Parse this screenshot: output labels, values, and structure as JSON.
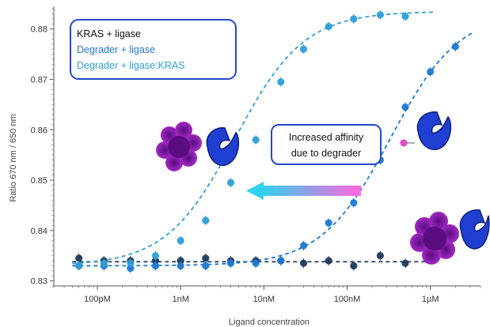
{
  "chart_data": {
    "type": "scatter",
    "xlabel": "Ligand concentration",
    "ylabel": "Ratio 670 nm / 650 nm",
    "x_scale": "log",
    "xlim": [
      3e-11,
      4e-06
    ],
    "ylim": [
      0.829,
      0.8845
    ],
    "x_ticks": [
      {
        "value": 1e-10,
        "label": "100pM"
      },
      {
        "value": 1e-09,
        "label": "1nM"
      },
      {
        "value": 1e-08,
        "label": "10nM"
      },
      {
        "value": 1e-07,
        "label": "100nM"
      },
      {
        "value": 1e-06,
        "label": "1µM"
      }
    ],
    "y_ticks": [
      {
        "value": 0.83,
        "label": "0.83"
      },
      {
        "value": 0.84,
        "label": "0.84"
      },
      {
        "value": 0.85,
        "label": "0.85"
      },
      {
        "value": 0.86,
        "label": "0.86"
      },
      {
        "value": 0.87,
        "label": "0.87"
      },
      {
        "value": 0.88,
        "label": "0.88"
      }
    ],
    "legend_position": "top-left",
    "grid": false,
    "series": [
      {
        "name": "KRAS + ligase",
        "color": "#1d3a5c",
        "x": [
          6e-11,
          1.2e-10,
          2.5e-10,
          5e-10,
          1e-09,
          2e-09,
          4e-09,
          8e-09,
          1.6e-08,
          3e-08,
          6e-08,
          1.2e-07,
          2.5e-07,
          5e-07
        ],
        "y": [
          0.8345,
          0.834,
          0.834,
          0.834,
          0.834,
          0.8345,
          0.834,
          0.834,
          0.834,
          0.8335,
          0.834,
          0.833,
          0.835,
          0.8335
        ]
      },
      {
        "name": "Degrader + ligase",
        "color": "#1e78d2",
        "x": [
          6e-11,
          1.2e-10,
          2.5e-10,
          5e-10,
          1e-09,
          2e-09,
          4e-09,
          8e-09,
          1.6e-08,
          3e-08,
          6e-08,
          1.2e-07,
          2.5e-07,
          5e-07,
          1e-06,
          2e-06
        ],
        "y": [
          0.833,
          0.833,
          0.8325,
          0.833,
          0.833,
          0.833,
          0.8335,
          0.8335,
          0.834,
          0.837,
          0.8415,
          0.8455,
          0.854,
          0.8645,
          0.8715,
          0.8765
        ]
      },
      {
        "name": "Degrader + ligase:KRAS",
        "color": "#2f9ed8",
        "x": [
          6e-11,
          1.2e-10,
          2.5e-10,
          5e-10,
          1e-09,
          2e-09,
          4e-09,
          8e-09,
          1.6e-08,
          3e-08,
          6e-08,
          1.2e-07,
          2.5e-07,
          5e-07
        ],
        "y": [
          0.833,
          0.8335,
          0.8335,
          0.835,
          0.838,
          0.842,
          0.8495,
          0.858,
          0.8695,
          0.876,
          0.8805,
          0.882,
          0.8828,
          0.8825
        ]
      }
    ],
    "fits": [
      {
        "series": "KRAS + ligase",
        "type": "flat",
        "level": 0.8338,
        "x_range": [
          5e-11,
          1.1e-06
        ]
      },
      {
        "series": "Degrader + ligase",
        "type": "sigmoid",
        "bottom": 0.833,
        "top": 0.8835,
        "ec50": 3.3e-07,
        "hill": 1.05,
        "x_range": [
          5e-11,
          3.2e-06
        ]
      },
      {
        "series": "Degrader + ligase:KRAS",
        "type": "sigmoid",
        "bottom": 0.833,
        "top": 0.8835,
        "ec50": 4.5e-09,
        "hill": 1.05,
        "x_range": [
          5e-11,
          1.1e-06
        ]
      }
    ],
    "annotation": {
      "text_lines": [
        "Increased affinity",
        "due to degrader"
      ]
    },
    "arrow_colors": {
      "start": "#ff66dd",
      "end": "#33d1ee"
    },
    "molecule_colors": {
      "kras": "#8b1fa9",
      "ligase": "#1f3fd0",
      "degrader": "#e14bc8"
    }
  }
}
